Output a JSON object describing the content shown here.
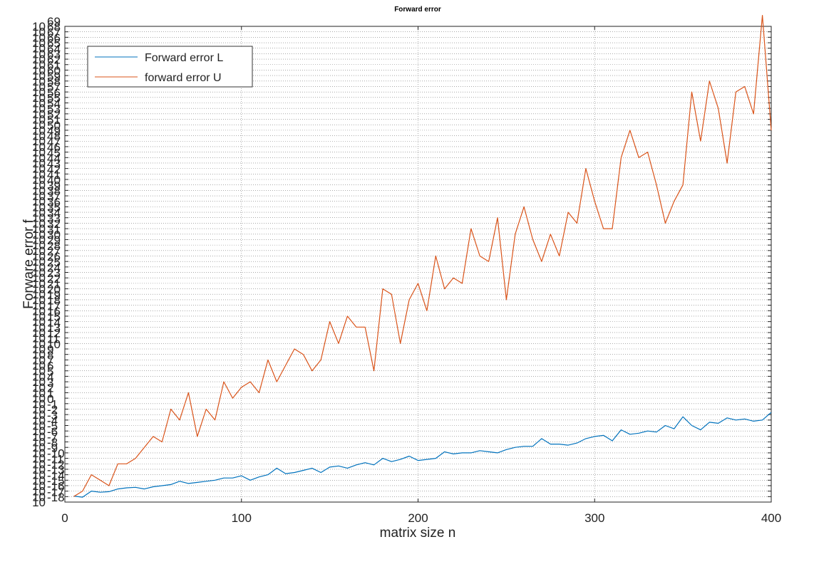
{
  "chart_data": {
    "type": "line",
    "title": "Forward error",
    "xlabel": "matrix size n",
    "ylabel": "Forware error f",
    "xlim": [
      0,
      400
    ],
    "ylim": [
      1e-18,
      1e-69
    ],
    "y_scale": "log",
    "grid": true,
    "legend_position": "top-left",
    "x_ticks": [
      0,
      100,
      200,
      300,
      400
    ],
    "x": [
      5,
      10,
      15,
      20,
      25,
      30,
      35,
      40,
      45,
      50,
      55,
      60,
      65,
      70,
      75,
      80,
      85,
      90,
      95,
      100,
      105,
      110,
      115,
      120,
      125,
      130,
      135,
      140,
      145,
      150,
      155,
      160,
      165,
      170,
      175,
      180,
      185,
      190,
      195,
      200,
      205,
      210,
      215,
      220,
      225,
      230,
      235,
      240,
      245,
      250,
      255,
      260,
      265,
      270,
      275,
      280,
      285,
      290,
      295,
      300,
      305,
      310,
      315,
      320,
      325,
      330,
      335,
      340,
      345,
      350,
      355,
      360,
      365,
      370,
      375,
      380,
      385,
      390,
      395,
      400
    ],
    "series": [
      {
        "name": "Forward error L",
        "color": "#0072bd",
        "values": [
          -16.9,
          -17.1,
          -16.0,
          -16.2,
          -16.1,
          -15.6,
          -15.4,
          -15.3,
          -15.6,
          -15.2,
          -15.0,
          -14.8,
          -14.2,
          -14.6,
          -14.4,
          -14.2,
          -14.0,
          -13.6,
          -13.6,
          -13.2,
          -14.0,
          -13.4,
          -13.0,
          -11.8,
          -12.8,
          -12.6,
          -12.2,
          -11.8,
          -12.6,
          -11.6,
          -11.4,
          -11.8,
          -11.2,
          -10.8,
          -11.2,
          -10.0,
          -10.6,
          -10.2,
          -9.6,
          -10.4,
          -10.2,
          -10.0,
          -8.8,
          -9.2,
          -9.0,
          -9.0,
          -8.6,
          -8.8,
          -9.0,
          -8.4,
          -8.0,
          -7.8,
          -7.8,
          -6.4,
          -7.4,
          -7.4,
          -7.6,
          -7.2,
          -6.4,
          -6.0,
          -5.8,
          -6.8,
          -4.8,
          -5.6,
          -5.4,
          -5.0,
          -5.2,
          -4.0,
          -4.6,
          -2.4,
          -4.0,
          -4.8,
          -3.4,
          -3.6,
          -2.6,
          -3.0,
          -2.8,
          -3.2,
          -3.0,
          -1.6
        ]
      },
      {
        "name": "forward error U",
        "color": "#d95319",
        "values": [
          -17,
          -16,
          -13,
          -14,
          -15,
          -11,
          -11,
          -10,
          -8,
          -6,
          -7,
          -1,
          -3,
          2,
          -6,
          -1,
          -3,
          4,
          1,
          3,
          4,
          2,
          8,
          4,
          7,
          10,
          9,
          6,
          8,
          15,
          11,
          16,
          14,
          14,
          6,
          21,
          20,
          11,
          19,
          22,
          17,
          27,
          21,
          23,
          22,
          32,
          27,
          26,
          34,
          19,
          31,
          36,
          30,
          26,
          31,
          27,
          35,
          33,
          43,
          37,
          32,
          32,
          45,
          50,
          45,
          46,
          40,
          33,
          37,
          40,
          57,
          48,
          59,
          54,
          44,
          57,
          58,
          53,
          71,
          50
        ]
      }
    ]
  }
}
